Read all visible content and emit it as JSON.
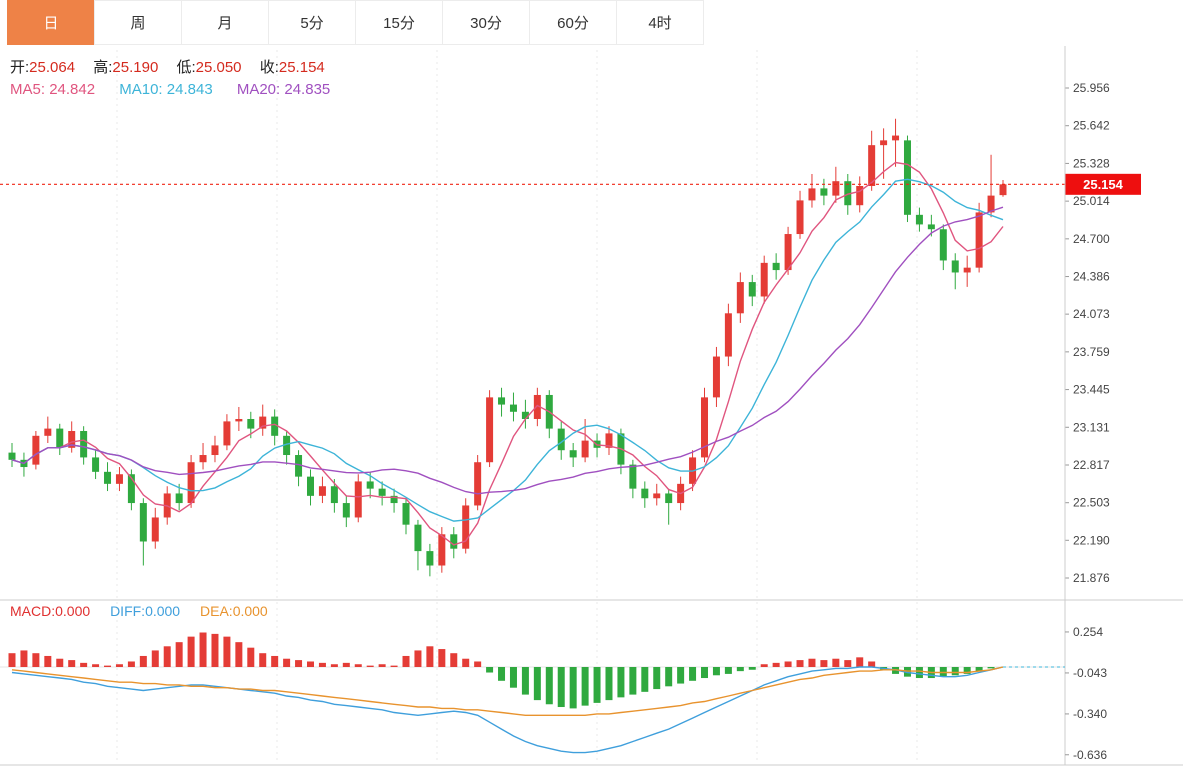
{
  "tabs": {
    "items": [
      {
        "label": "日",
        "active": true
      },
      {
        "label": "周",
        "active": false
      },
      {
        "label": "月",
        "active": false
      },
      {
        "label": "5分",
        "active": false
      },
      {
        "label": "15分",
        "active": false
      },
      {
        "label": "30分",
        "active": false
      },
      {
        "label": "60分",
        "active": false
      },
      {
        "label": "4时",
        "active": false
      }
    ]
  },
  "ohlc_header": {
    "open_label": "开:",
    "open": "25.064",
    "high_label": "高:",
    "high": "25.190",
    "low_label": "低:",
    "low": "25.050",
    "close_label": "收:",
    "close": "25.154"
  },
  "ma_header": {
    "ma5_label": "MA5:",
    "ma5": "24.842",
    "ma10_label": "MA10:",
    "ma10": "24.843",
    "ma20_label": "MA20:",
    "ma20": "24.835"
  },
  "macd_header": {
    "macd_label": "MACD:",
    "macd": "0.000",
    "diff_label": "DIFF:",
    "diff": "0.000",
    "dea_label": "DEA:",
    "dea": "0.000"
  },
  "price_marker": {
    "value": "25.154"
  },
  "colors": {
    "up": "#e43c36",
    "down": "#2fa93f",
    "ma5": "#e0557f",
    "ma10": "#3db4d8",
    "ma20": "#a050c0",
    "diff": "#3f9fdc",
    "dea": "#e8932e",
    "price_line": "#f02515",
    "price_label_bg": "#ee0f0f",
    "axis_text": "#444",
    "grid": "#e9e9e9",
    "separator": "#cccccc",
    "tab_active_bg": "#ee8247"
  },
  "chart_data": [
    {
      "type": "candlestick",
      "title": "",
      "y_axis_ticks": [
        "25.956",
        "25.642",
        "25.328",
        "25.014",
        "24.700",
        "24.386",
        "24.073",
        "23.759",
        "23.445",
        "23.131",
        "22.817",
        "22.503",
        "22.190",
        "21.876"
      ],
      "y_range": [
        21.876,
        25.956
      ],
      "last_price": 25.154,
      "overlays": [
        {
          "name": "MA5",
          "period": 5,
          "value": "24.842"
        },
        {
          "name": "MA10",
          "period": 10,
          "value": "24.843"
        },
        {
          "name": "MA20",
          "period": 20,
          "value": "24.835"
        }
      ],
      "candles": [
        [
          22.92,
          23.0,
          22.8,
          22.86
        ],
        [
          22.86,
          22.92,
          22.72,
          22.8
        ],
        [
          22.82,
          23.1,
          22.78,
          23.06
        ],
        [
          23.06,
          23.22,
          23.0,
          23.12
        ],
        [
          23.12,
          23.16,
          22.9,
          22.96
        ],
        [
          22.96,
          23.18,
          22.92,
          23.1
        ],
        [
          23.1,
          23.14,
          22.82,
          22.88
        ],
        [
          22.88,
          22.94,
          22.7,
          22.76
        ],
        [
          22.76,
          22.84,
          22.6,
          22.66
        ],
        [
          22.66,
          22.8,
          22.6,
          22.74
        ],
        [
          22.74,
          22.78,
          22.44,
          22.5
        ],
        [
          22.5,
          22.54,
          21.98,
          22.18
        ],
        [
          22.18,
          22.46,
          22.12,
          22.38
        ],
        [
          22.38,
          22.64,
          22.32,
          22.58
        ],
        [
          22.58,
          22.66,
          22.44,
          22.5
        ],
        [
          22.5,
          22.9,
          22.46,
          22.84
        ],
        [
          22.84,
          23.0,
          22.78,
          22.9
        ],
        [
          22.9,
          23.06,
          22.84,
          22.98
        ],
        [
          22.98,
          23.24,
          22.94,
          23.18
        ],
        [
          23.18,
          23.3,
          23.1,
          23.2
        ],
        [
          23.2,
          23.26,
          23.04,
          23.12
        ],
        [
          23.12,
          23.32,
          23.06,
          23.22
        ],
        [
          23.22,
          23.28,
          22.98,
          23.06
        ],
        [
          23.06,
          23.1,
          22.82,
          22.9
        ],
        [
          22.9,
          22.94,
          22.64,
          22.72
        ],
        [
          22.72,
          22.78,
          22.48,
          22.56
        ],
        [
          22.56,
          22.72,
          22.5,
          22.64
        ],
        [
          22.64,
          22.7,
          22.42,
          22.5
        ],
        [
          22.5,
          22.56,
          22.3,
          22.38
        ],
        [
          22.38,
          22.74,
          22.34,
          22.68
        ],
        [
          22.68,
          22.76,
          22.54,
          22.62
        ],
        [
          22.62,
          22.68,
          22.48,
          22.56
        ],
        [
          22.56,
          22.62,
          22.42,
          22.5
        ],
        [
          22.5,
          22.54,
          22.24,
          22.32
        ],
        [
          22.32,
          22.36,
          21.94,
          22.1
        ],
        [
          22.1,
          22.16,
          21.89,
          21.98
        ],
        [
          21.98,
          22.3,
          21.92,
          22.24
        ],
        [
          22.24,
          22.3,
          22.04,
          22.12
        ],
        [
          22.12,
          22.54,
          22.08,
          22.48
        ],
        [
          22.48,
          22.9,
          22.44,
          22.84
        ],
        [
          22.84,
          23.44,
          22.8,
          23.38
        ],
        [
          23.38,
          23.46,
          23.22,
          23.32
        ],
        [
          23.32,
          23.42,
          23.18,
          23.26
        ],
        [
          23.26,
          23.36,
          23.12,
          23.2
        ],
        [
          23.2,
          23.46,
          23.14,
          23.4
        ],
        [
          23.4,
          23.44,
          23.04,
          23.12
        ],
        [
          23.12,
          23.18,
          22.86,
          22.94
        ],
        [
          22.94,
          23.0,
          22.8,
          22.88
        ],
        [
          22.88,
          23.2,
          22.84,
          23.02
        ],
        [
          23.02,
          23.08,
          22.88,
          22.96
        ],
        [
          22.96,
          23.14,
          22.9,
          23.08
        ],
        [
          23.08,
          23.12,
          22.74,
          22.82
        ],
        [
          22.82,
          22.86,
          22.54,
          22.62
        ],
        [
          22.62,
          22.68,
          22.46,
          22.54
        ],
        [
          22.54,
          22.66,
          22.48,
          22.58
        ],
        [
          22.58,
          22.62,
          22.32,
          22.5
        ],
        [
          22.5,
          22.72,
          22.44,
          22.66
        ],
        [
          22.66,
          22.94,
          22.6,
          22.88
        ],
        [
          22.88,
          23.46,
          22.84,
          23.38
        ],
        [
          23.38,
          23.8,
          23.3,
          23.72
        ],
        [
          23.72,
          24.16,
          23.64,
          24.08
        ],
        [
          24.08,
          24.42,
          24.0,
          24.34
        ],
        [
          24.34,
          24.4,
          24.14,
          24.22
        ],
        [
          24.22,
          24.56,
          24.16,
          24.5
        ],
        [
          24.5,
          24.58,
          24.36,
          24.44
        ],
        [
          24.44,
          24.8,
          24.4,
          24.74
        ],
        [
          24.74,
          25.1,
          24.7,
          25.02
        ],
        [
          25.02,
          25.24,
          24.96,
          25.12
        ],
        [
          25.12,
          25.2,
          24.98,
          25.06
        ],
        [
          25.06,
          25.3,
          25.0,
          25.18
        ],
        [
          25.18,
          25.24,
          24.9,
          24.98
        ],
        [
          24.98,
          25.22,
          24.92,
          25.14
        ],
        [
          25.14,
          25.6,
          25.1,
          25.48
        ],
        [
          25.48,
          25.62,
          25.2,
          25.52
        ],
        [
          25.52,
          25.7,
          25.3,
          25.56
        ],
        [
          25.52,
          25.56,
          24.84,
          24.9
        ],
        [
          24.9,
          24.96,
          24.76,
          24.82
        ],
        [
          24.82,
          24.9,
          24.72,
          24.78
        ],
        [
          24.78,
          24.82,
          24.44,
          24.52
        ],
        [
          24.52,
          24.58,
          24.28,
          24.42
        ],
        [
          24.42,
          24.56,
          24.3,
          24.46
        ],
        [
          24.46,
          25.0,
          24.42,
          24.92
        ],
        [
          24.92,
          25.4,
          24.88,
          25.06
        ],
        [
          25.064,
          25.19,
          25.05,
          25.154
        ]
      ]
    },
    {
      "type": "macd",
      "y_axis_ticks": [
        "0.254",
        "-0.043",
        "-0.340",
        "-0.636"
      ],
      "values": {
        "macd": "0.000",
        "diff": "0.000",
        "dea": "0.000"
      },
      "histogram": [
        0.1,
        0.12,
        0.1,
        0.08,
        0.06,
        0.05,
        0.03,
        0.02,
        0.01,
        0.02,
        0.04,
        0.08,
        0.12,
        0.15,
        0.18,
        0.22,
        0.25,
        0.24,
        0.22,
        0.18,
        0.14,
        0.1,
        0.08,
        0.06,
        0.05,
        0.04,
        0.03,
        0.02,
        0.03,
        0.02,
        0.01,
        0.02,
        0.01,
        0.08,
        0.12,
        0.15,
        0.13,
        0.1,
        0.06,
        0.04,
        -0.04,
        -0.1,
        -0.15,
        -0.2,
        -0.24,
        -0.27,
        -0.29,
        -0.3,
        -0.28,
        -0.26,
        -0.24,
        -0.22,
        -0.2,
        -0.18,
        -0.16,
        -0.14,
        -0.12,
        -0.1,
        -0.08,
        -0.06,
        -0.05,
        -0.03,
        -0.02,
        0.02,
        0.03,
        0.04,
        0.05,
        0.06,
        0.05,
        0.06,
        0.05,
        0.07,
        0.04,
        -0.02,
        -0.05,
        -0.07,
        -0.08,
        -0.08,
        -0.07,
        -0.06,
        -0.05,
        -0.03,
        -0.01,
        0.0
      ],
      "series": [
        {
          "name": "DIFF",
          "values": [
            -0.04,
            -0.05,
            -0.06,
            -0.07,
            -0.08,
            -0.09,
            -0.11,
            -0.12,
            -0.14,
            -0.15,
            -0.16,
            -0.17,
            -0.16,
            -0.15,
            -0.14,
            -0.13,
            -0.13,
            -0.14,
            -0.15,
            -0.16,
            -0.17,
            -0.18,
            -0.19,
            -0.21,
            -0.22,
            -0.24,
            -0.25,
            -0.27,
            -0.28,
            -0.29,
            -0.3,
            -0.31,
            -0.33,
            -0.34,
            -0.35,
            -0.34,
            -0.33,
            -0.32,
            -0.33,
            -0.35,
            -0.4,
            -0.45,
            -0.5,
            -0.54,
            -0.57,
            -0.59,
            -0.61,
            -0.62,
            -0.62,
            -0.61,
            -0.59,
            -0.57,
            -0.54,
            -0.51,
            -0.48,
            -0.45,
            -0.41,
            -0.37,
            -0.33,
            -0.29,
            -0.25,
            -0.21,
            -0.17,
            -0.13,
            -0.1,
            -0.07,
            -0.05,
            -0.03,
            -0.02,
            -0.01,
            -0.01,
            0.0,
            0.0,
            -0.01,
            -0.02,
            -0.04,
            -0.05,
            -0.06,
            -0.07,
            -0.07,
            -0.06,
            -0.04,
            -0.02,
            0.0
          ]
        },
        {
          "name": "DEA",
          "values": [
            -0.02,
            -0.03,
            -0.04,
            -0.05,
            -0.06,
            -0.07,
            -0.08,
            -0.09,
            -0.1,
            -0.11,
            -0.11,
            -0.12,
            -0.12,
            -0.13,
            -0.13,
            -0.14,
            -0.14,
            -0.15,
            -0.15,
            -0.16,
            -0.16,
            -0.17,
            -0.17,
            -0.18,
            -0.19,
            -0.2,
            -0.21,
            -0.22,
            -0.23,
            -0.24,
            -0.25,
            -0.26,
            -0.27,
            -0.28,
            -0.29,
            -0.29,
            -0.3,
            -0.3,
            -0.31,
            -0.31,
            -0.32,
            -0.33,
            -0.34,
            -0.35,
            -0.35,
            -0.35,
            -0.35,
            -0.35,
            -0.35,
            -0.34,
            -0.34,
            -0.33,
            -0.32,
            -0.31,
            -0.3,
            -0.29,
            -0.28,
            -0.26,
            -0.25,
            -0.23,
            -0.21,
            -0.19,
            -0.17,
            -0.15,
            -0.13,
            -0.11,
            -0.09,
            -0.08,
            -0.06,
            -0.05,
            -0.04,
            -0.03,
            -0.03,
            -0.02,
            -0.02,
            -0.03,
            -0.03,
            -0.04,
            -0.04,
            -0.04,
            -0.04,
            -0.03,
            -0.02,
            0.0
          ]
        }
      ]
    }
  ]
}
